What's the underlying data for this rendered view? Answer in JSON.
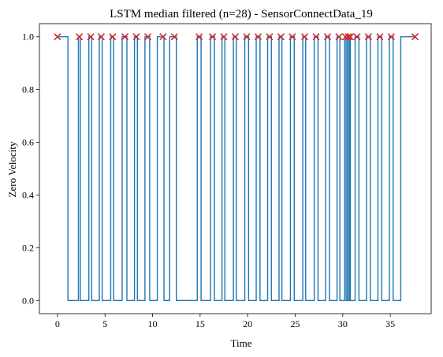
{
  "chart_data": {
    "type": "line",
    "title": "LSTM median filtered (n=28) - SensorConnectData_19",
    "xlabel": "Time",
    "ylabel": "Zero Velocity",
    "xlim": [
      -1.9,
      39.3
    ],
    "ylim": [
      -0.05,
      1.05
    ],
    "xticks": [
      0,
      5,
      10,
      15,
      20,
      25,
      30,
      35
    ],
    "yticks": [
      0.0,
      0.2,
      0.4,
      0.6,
      0.8,
      1.0
    ],
    "xtick_labels": [
      "0",
      "5",
      "10",
      "15",
      "20",
      "25",
      "30",
      "35"
    ],
    "ytick_labels": [
      "0.0",
      "0.2",
      "0.4",
      "0.6",
      "0.8",
      "1.0"
    ],
    "grid": false,
    "series": [
      {
        "name": "",
        "color": "#1f77b4",
        "style": "step",
        "high_intervals": [
          [
            0.0,
            1.1
          ],
          [
            2.2,
            2.4
          ],
          [
            3.3,
            3.6
          ],
          [
            4.4,
            4.7
          ],
          [
            5.6,
            5.9
          ],
          [
            6.8,
            7.3
          ],
          [
            8.1,
            8.4
          ],
          [
            9.2,
            9.7
          ],
          [
            10.5,
            11.2
          ],
          [
            11.8,
            12.5
          ],
          [
            14.7,
            15.1
          ],
          [
            16.1,
            16.5
          ],
          [
            17.3,
            17.6
          ],
          [
            18.5,
            18.8
          ],
          [
            19.7,
            20.1
          ],
          [
            20.9,
            21.3
          ],
          [
            22.1,
            22.5
          ],
          [
            23.3,
            23.6
          ],
          [
            24.5,
            24.9
          ],
          [
            25.8,
            26.1
          ],
          [
            27.0,
            27.4
          ],
          [
            28.2,
            28.6
          ],
          [
            29.4,
            29.7
          ],
          [
            30.2,
            30.35
          ],
          [
            30.5,
            30.55
          ],
          [
            30.7,
            30.8
          ],
          [
            31.3,
            31.7
          ],
          [
            32.5,
            32.9
          ],
          [
            33.7,
            34.1
          ],
          [
            34.9,
            35.3
          ],
          [
            36.1,
            37.6
          ]
        ],
        "x_end": 37.6
      },
      {
        "name": "",
        "color": "#d62728",
        "marker": "x",
        "x": [
          0.0,
          2.3,
          3.5,
          4.6,
          5.8,
          7.1,
          8.3,
          9.5,
          11.1,
          12.3,
          14.9,
          16.3,
          17.5,
          18.7,
          19.9,
          21.1,
          22.3,
          23.5,
          24.7,
          26.0,
          27.2,
          28.4,
          29.6,
          30.3,
          30.6,
          30.8,
          31.5,
          32.7,
          33.9,
          35.1,
          37.6
        ],
        "y": [
          1,
          1,
          1,
          1,
          1,
          1,
          1,
          1,
          1,
          1,
          1,
          1,
          1,
          1,
          1,
          1,
          1,
          1,
          1,
          1,
          1,
          1,
          1,
          1,
          1,
          1,
          1,
          1,
          1,
          1,
          1
        ]
      }
    ]
  }
}
